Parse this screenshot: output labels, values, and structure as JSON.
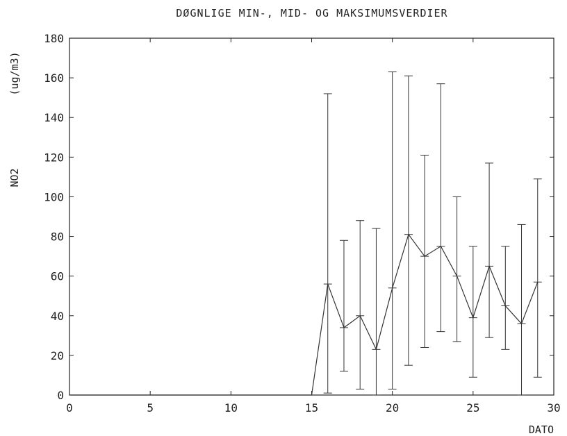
{
  "chart_data": {
    "type": "line",
    "title": "DØGNLIGE MIN-, MID- OG MAKSIMUMSVERDIER",
    "xlabel": "DATO",
    "ylabel": "NO2",
    "yunit": "(ug/m3)",
    "xlim": [
      0,
      30
    ],
    "ylim": [
      0,
      180
    ],
    "xticks": [
      0,
      5,
      10,
      15,
      20,
      25,
      30
    ],
    "yticks": [
      0,
      20,
      40,
      60,
      80,
      100,
      120,
      140,
      160,
      180
    ],
    "grid": false,
    "mean_line": {
      "x": [
        0,
        15,
        16,
        17,
        18,
        19,
        20,
        21,
        22,
        23,
        24,
        25,
        26,
        27,
        28,
        29
      ],
      "y": [
        0,
        0,
        56,
        34,
        40,
        23,
        54,
        81,
        70,
        75,
        60,
        39,
        65,
        45,
        36,
        57
      ]
    },
    "errorbars": [
      {
        "x": 16,
        "min": 1,
        "mean": 56,
        "max": 152
      },
      {
        "x": 17,
        "min": 12,
        "mean": 34,
        "max": 78
      },
      {
        "x": 18,
        "min": 3,
        "mean": 40,
        "max": 88
      },
      {
        "x": 19,
        "min": 0,
        "mean": 23,
        "max": 84
      },
      {
        "x": 20,
        "min": 3,
        "mean": 54,
        "max": 163
      },
      {
        "x": 21,
        "min": 15,
        "mean": 81,
        "max": 161
      },
      {
        "x": 22,
        "min": 24,
        "mean": 70,
        "max": 121
      },
      {
        "x": 23,
        "min": 32,
        "mean": 75,
        "max": 157
      },
      {
        "x": 24,
        "min": 27,
        "mean": 60,
        "max": 100
      },
      {
        "x": 25,
        "min": 9,
        "mean": 39,
        "max": 75
      },
      {
        "x": 26,
        "min": 29,
        "mean": 65,
        "max": 117
      },
      {
        "x": 27,
        "min": 23,
        "mean": 45,
        "max": 75
      },
      {
        "x": 28,
        "min": 0,
        "mean": 36,
        "max": 86
      },
      {
        "x": 29,
        "min": 9,
        "mean": 57,
        "max": 109
      }
    ]
  }
}
